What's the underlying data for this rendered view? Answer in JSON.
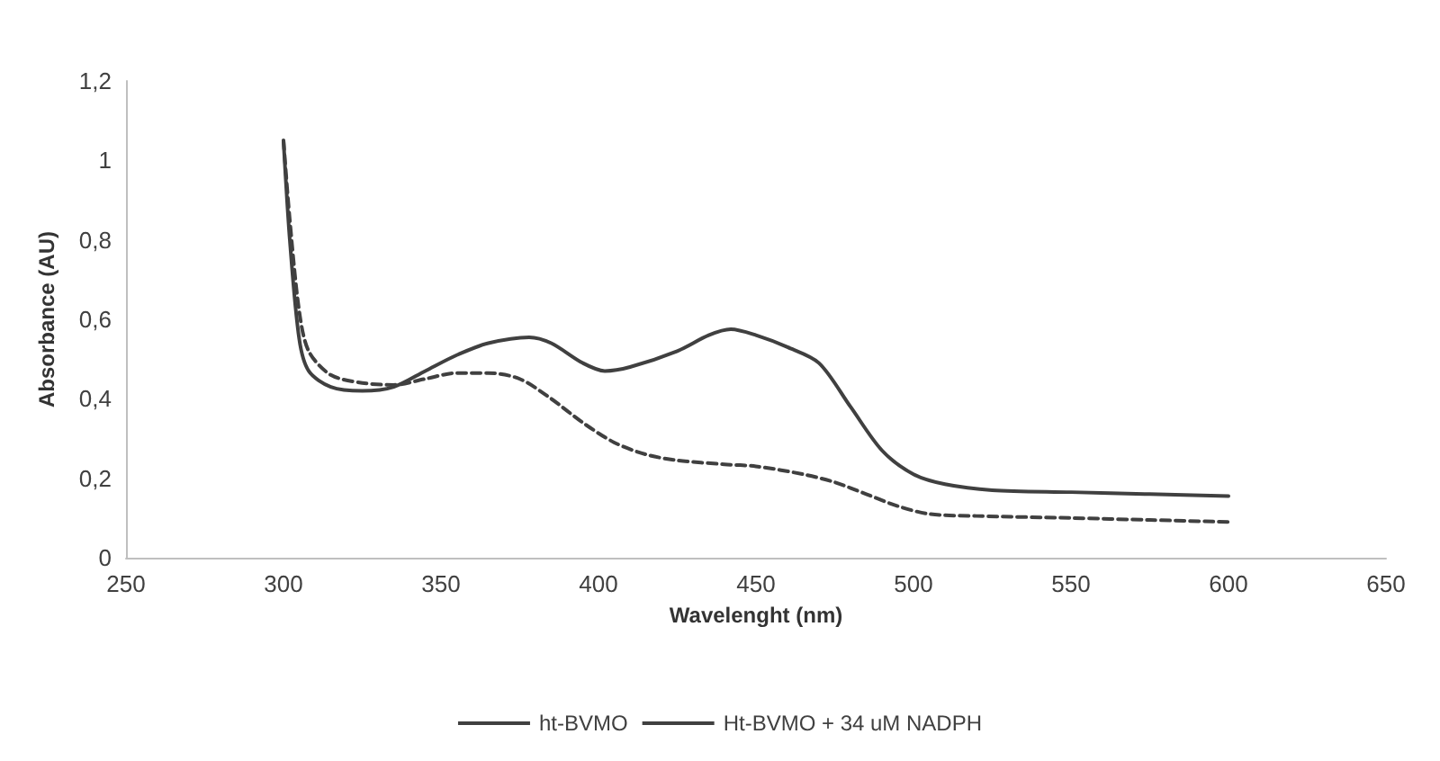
{
  "chart_data": {
    "type": "line",
    "xlabel": "Wavelenght (nm)",
    "ylabel": "Absorbance (AU)",
    "xlim": [
      250,
      650
    ],
    "xticks": [
      250,
      300,
      350,
      400,
      450,
      500,
      550,
      600,
      650
    ],
    "ylim": [
      0,
      1.2
    ],
    "yticks": [
      0,
      {
        "value": 0.2,
        "label": "0,2"
      },
      {
        "value": 0.4,
        "label": "0,4"
      },
      {
        "value": 0.6,
        "label": "0,6"
      },
      {
        "value": 0.8,
        "label": "0,8"
      },
      1,
      {
        "value": 1.2,
        "label": "1,2"
      }
    ],
    "grid": false,
    "legend": "bottom",
    "marker": "none",
    "series": [
      {
        "name": "ht-BVMO",
        "color": "#404040",
        "line_style": "solid",
        "x": [
          300,
          302,
          305,
          308,
          315,
          325,
          335,
          345,
          355,
          365,
          378,
          385,
          395,
          402,
          410,
          425,
          435,
          442,
          450,
          460,
          470,
          480,
          490,
          500,
          510,
          525,
          550,
          575,
          600
        ],
        "values": [
          1.05,
          0.8,
          0.55,
          0.47,
          0.43,
          0.42,
          0.43,
          0.47,
          0.51,
          0.54,
          0.555,
          0.54,
          0.49,
          0.47,
          0.48,
          0.52,
          0.56,
          0.575,
          0.56,
          0.53,
          0.49,
          0.38,
          0.27,
          0.21,
          0.185,
          0.17,
          0.165,
          0.16,
          0.155
        ]
      },
      {
        "name": "Ht-BVMO + 34 uM NADPH",
        "color": "#404040",
        "line_style": "dashed",
        "x": [
          300,
          302,
          305,
          308,
          315,
          325,
          335,
          345,
          355,
          365,
          375,
          385,
          395,
          405,
          415,
          425,
          440,
          450,
          465,
          475,
          485,
          495,
          505,
          520,
          550,
          575,
          600
        ],
        "values": [
          1.05,
          0.85,
          0.62,
          0.52,
          0.46,
          0.44,
          0.435,
          0.45,
          0.465,
          0.465,
          0.45,
          0.4,
          0.34,
          0.29,
          0.26,
          0.245,
          0.235,
          0.23,
          0.21,
          0.19,
          0.16,
          0.13,
          0.11,
          0.105,
          0.1,
          0.095,
          0.09
        ]
      }
    ]
  }
}
